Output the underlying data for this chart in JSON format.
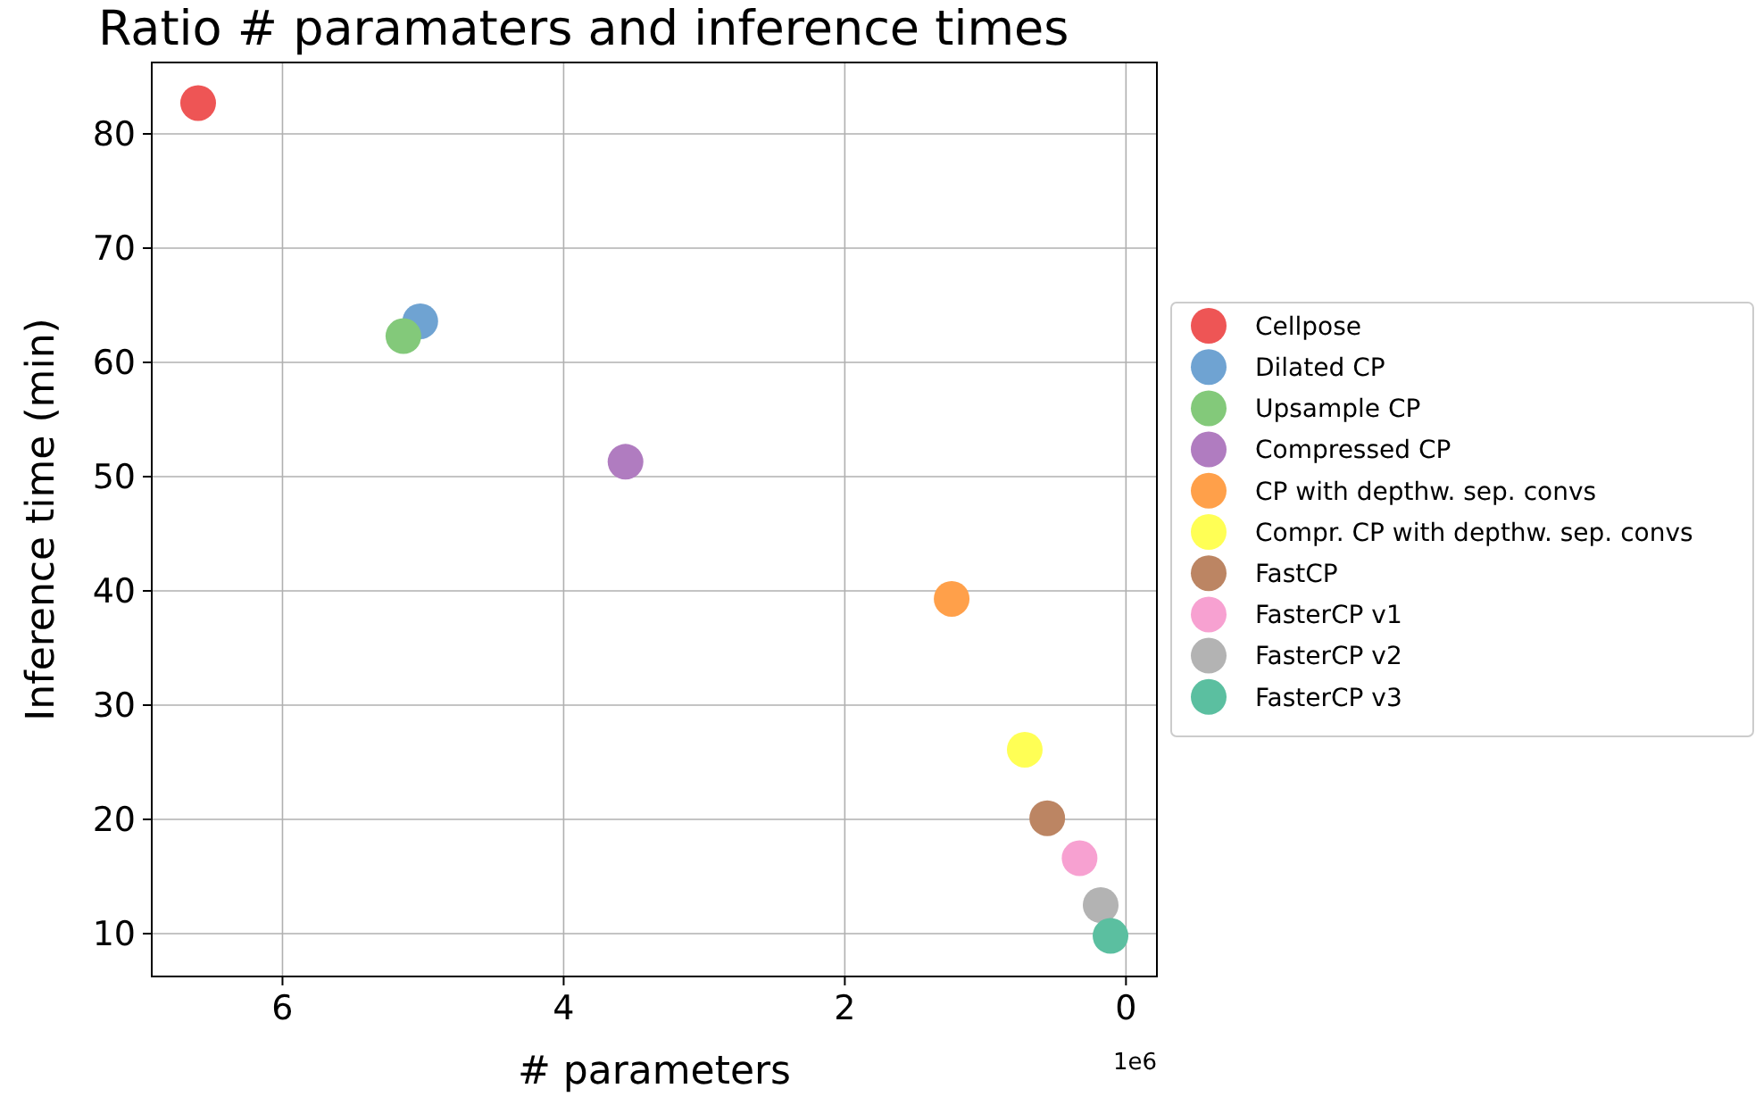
{
  "chart_data": {
    "type": "scatter",
    "title": "Ratio # paramaters and inference times",
    "xlabel": "# parameters",
    "ylabel": "Inference time (min)",
    "xlim": [
      6.93,
      -0.22
    ],
    "ylim": [
      6.25,
      86.25
    ],
    "xticks": [
      6,
      4,
      2,
      0
    ],
    "yticks": [
      10,
      20,
      30,
      40,
      50,
      60,
      70,
      80
    ],
    "annotations": [
      "1e6"
    ],
    "grid": true,
    "legend": "right",
    "marker": "circle",
    "series": [
      {
        "name": "Cellpose",
        "color": "#ee5555",
        "x": [
          6.6
        ],
        "values": [
          82.7
        ]
      },
      {
        "name": "Dilated CP",
        "color": "#6fa3d2",
        "x": [
          5.02
        ],
        "values": [
          63.6
        ]
      },
      {
        "name": "Upsample CP",
        "color": "#83c97a",
        "x": [
          5.14
        ],
        "values": [
          62.3
        ]
      },
      {
        "name": "Compressed CP",
        "color": "#b07cc0",
        "x": [
          3.56
        ],
        "values": [
          51.3
        ]
      },
      {
        "name": "CP with depthw. sep. convs",
        "color": "#ffa04a",
        "x": [
          1.24
        ],
        "values": [
          39.3
        ]
      },
      {
        "name": "Compr. CP with depthw. sep. convs",
        "color": "#ffff55",
        "x": [
          0.72
        ],
        "values": [
          26.1
        ]
      },
      {
        "name": "FastCP",
        "color": "#bc8563",
        "x": [
          0.56
        ],
        "values": [
          20.1
        ]
      },
      {
        "name": "FasterCP v1",
        "color": "#f7a1d1",
        "x": [
          0.33
        ],
        "values": [
          16.6
        ]
      },
      {
        "name": "FasterCP v2",
        "color": "#b3b3b3",
        "x": [
          0.18
        ],
        "values": [
          12.5
        ]
      },
      {
        "name": "FasterCP v3",
        "color": "#5bbfa0",
        "x": [
          0.11
        ],
        "values": [
          9.8
        ]
      }
    ]
  }
}
